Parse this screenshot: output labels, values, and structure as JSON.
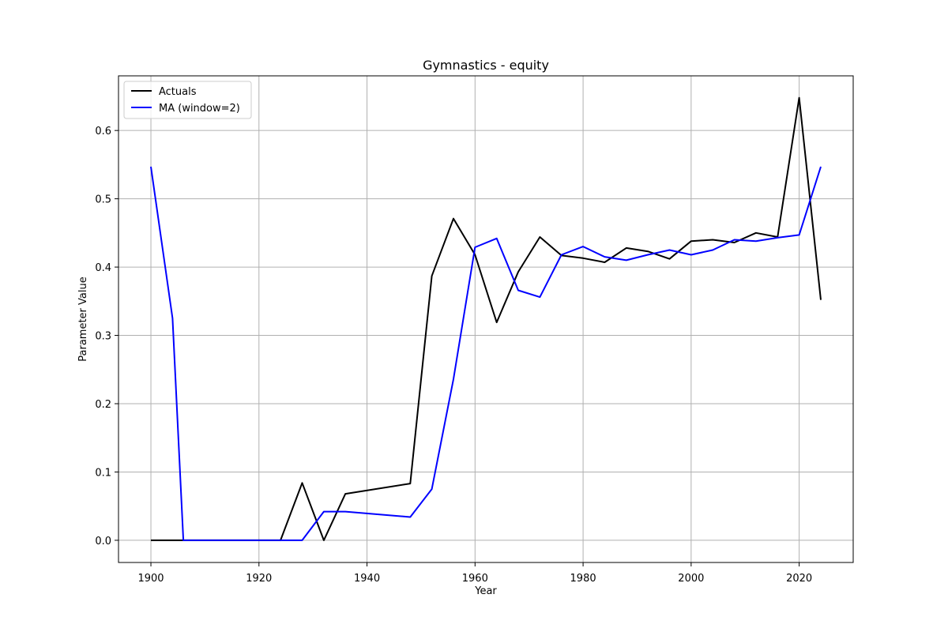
{
  "chart_data": {
    "type": "line",
    "title": "Gymnastics - equity",
    "xlabel": "Year",
    "ylabel": "Parameter Value",
    "xlim": [
      1894,
      2030
    ],
    "ylim": [
      -0.0325,
      0.68
    ],
    "xticks": [
      1900,
      1920,
      1940,
      1960,
      1980,
      2000,
      2020
    ],
    "xtick_labels": [
      "1900",
      "1920",
      "1940",
      "1960",
      "1980",
      "2000",
      "2020"
    ],
    "yticks": [
      0.0,
      0.1,
      0.2,
      0.3,
      0.4,
      0.5,
      0.6
    ],
    "ytick_labels": [
      "0.0",
      "0.1",
      "0.2",
      "0.3",
      "0.4",
      "0.5",
      "0.6"
    ],
    "grid": true,
    "legend_position": "top-left",
    "series": [
      {
        "name": "Actuals",
        "color": "#000000",
        "x": [
          1900,
          1904,
          1906,
          1924,
          1928,
          1932,
          1936,
          1948,
          1952,
          1956,
          1960,
          1964,
          1968,
          1972,
          1976,
          1980,
          1984,
          1988,
          1992,
          1996,
          2000,
          2004,
          2008,
          2012,
          2016,
          2020,
          2024
        ],
        "y": [
          0.0,
          0.0,
          0.0,
          0.0,
          0.084,
          0.0,
          0.068,
          0.083,
          0.387,
          0.471,
          0.418,
          0.319,
          0.393,
          0.444,
          0.417,
          0.413,
          0.407,
          0.428,
          0.423,
          0.412,
          0.438,
          0.44,
          0.436,
          0.45,
          0.444,
          0.648,
          0.352
        ]
      },
      {
        "name": "MA (window=2)",
        "color": "#0000ff",
        "x": [
          1900,
          1904,
          1906,
          1924,
          1928,
          1932,
          1936,
          1948,
          1952,
          1956,
          1960,
          1964,
          1968,
          1972,
          1976,
          1980,
          1984,
          1988,
          1992,
          1996,
          2000,
          2004,
          2008,
          2012,
          2016,
          2020,
          2024
        ],
        "y": [
          0.547,
          0.325,
          0.0,
          0.0,
          0.0,
          0.042,
          0.042,
          0.034,
          0.075,
          0.236,
          0.429,
          0.442,
          0.366,
          0.356,
          0.418,
          0.43,
          0.415,
          0.41,
          0.418,
          0.425,
          0.418,
          0.425,
          0.44,
          0.438,
          0.443,
          0.447,
          0.547
        ]
      }
    ]
  }
}
